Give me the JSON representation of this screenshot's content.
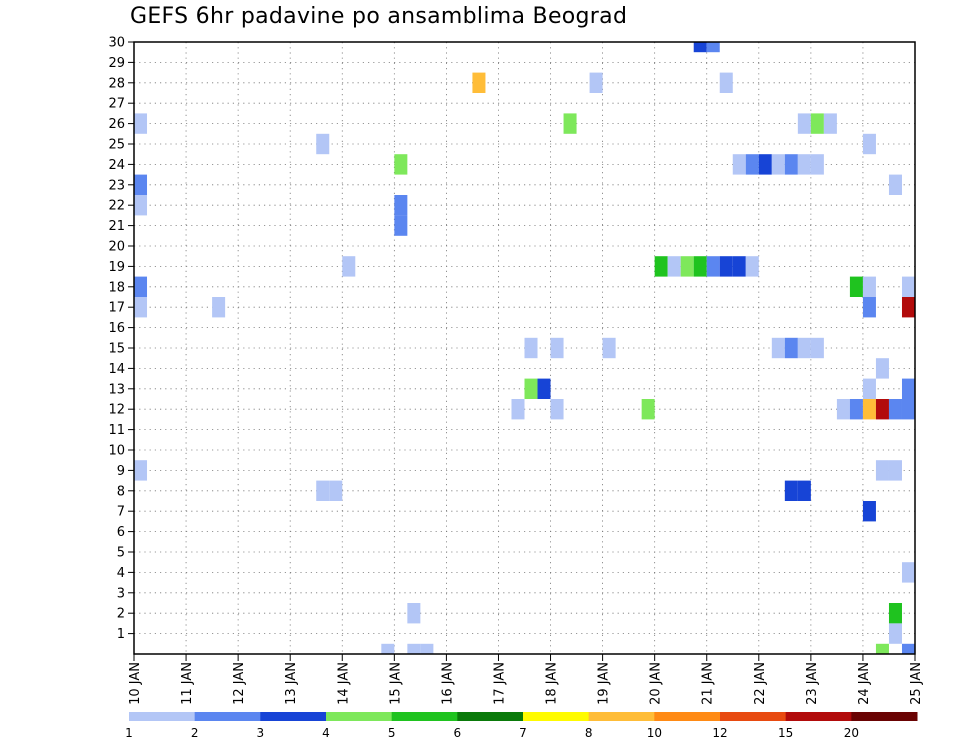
{
  "title": "GEFS 6hr padavine po ansamblima Beograd",
  "chart_data": {
    "type": "heatmap",
    "title": "GEFS 6hr padavine po ansamblima Beograd",
    "xlabel": "",
    "ylabel": "",
    "x_ticks": [
      "10 JAN",
      "11 JAN",
      "12 JAN",
      "13 JAN",
      "14 JAN",
      "15 JAN",
      "16 JAN",
      "17 JAN",
      "18 JAN",
      "19 JAN",
      "20 JAN",
      "21 JAN",
      "22 JAN",
      "23 JAN",
      "24 JAN",
      "25 JAN"
    ],
    "y_ticks": [
      1,
      2,
      3,
      4,
      5,
      6,
      7,
      8,
      9,
      10,
      11,
      12,
      13,
      14,
      15,
      16,
      17,
      18,
      19,
      20,
      21,
      22,
      23,
      24,
      25,
      26,
      27,
      28,
      29,
      30
    ],
    "xlim_days": [
      10,
      25
    ],
    "ylim_members": [
      0,
      30
    ],
    "time_step_hours": 6,
    "grid": "dotted",
    "colorbar": {
      "placement": "bottom",
      "labels": [
        "1",
        "2",
        "3",
        "4",
        "5",
        "6",
        "7",
        "8",
        "10",
        "12",
        "15",
        "20"
      ],
      "colors": [
        "#b3c6f6",
        "#5b86f0",
        "#1744d6",
        "#7ee85b",
        "#1fc31f",
        "#0a7a0a",
        "#fffb00",
        "#ffbd38",
        "#ff8a14",
        "#e84a10",
        "#b20b0b",
        "#6a0303"
      ]
    },
    "cells": [
      {
        "member": 30,
        "day": 20.875,
        "level": 3
      },
      {
        "member": 30,
        "day": 21.125,
        "level": 2
      },
      {
        "member": 28,
        "day": 16.625,
        "level": 8
      },
      {
        "member": 28,
        "day": 18.875,
        "level": 1
      },
      {
        "member": 28,
        "day": 21.375,
        "level": 1
      },
      {
        "member": 26,
        "day": 10.125,
        "level": 1
      },
      {
        "member": 26,
        "day": 18.375,
        "level": 4
      },
      {
        "member": 26,
        "day": 22.875,
        "level": 1
      },
      {
        "member": 26,
        "day": 23.125,
        "level": 4
      },
      {
        "member": 26,
        "day": 23.375,
        "level": 1
      },
      {
        "member": 25,
        "day": 13.625,
        "level": 1
      },
      {
        "member": 25,
        "day": 24.125,
        "level": 1
      },
      {
        "member": 24,
        "day": 15.125,
        "level": 4
      },
      {
        "member": 24,
        "day": 21.625,
        "level": 1
      },
      {
        "member": 24,
        "day": 21.875,
        "level": 2
      },
      {
        "member": 24,
        "day": 22.125,
        "level": 3
      },
      {
        "member": 24,
        "day": 22.375,
        "level": 1
      },
      {
        "member": 24,
        "day": 22.625,
        "level": 2
      },
      {
        "member": 24,
        "day": 22.875,
        "level": 1
      },
      {
        "member": 24,
        "day": 23.125,
        "level": 1
      },
      {
        "member": 23,
        "day": 10.125,
        "level": 2
      },
      {
        "member": 23,
        "day": 24.625,
        "level": 1
      },
      {
        "member": 22,
        "day": 10.125,
        "level": 1
      },
      {
        "member": 22,
        "day": 15.125,
        "level": 2
      },
      {
        "member": 21,
        "day": 15.125,
        "level": 2
      },
      {
        "member": 19,
        "day": 14.125,
        "level": 1
      },
      {
        "member": 19,
        "day": 20.125,
        "level": 5
      },
      {
        "member": 19,
        "day": 20.375,
        "level": 1
      },
      {
        "member": 19,
        "day": 20.625,
        "level": 4
      },
      {
        "member": 19,
        "day": 20.875,
        "level": 5
      },
      {
        "member": 19,
        "day": 21.125,
        "level": 2
      },
      {
        "member": 19,
        "day": 21.375,
        "level": 3
      },
      {
        "member": 19,
        "day": 21.625,
        "level": 3
      },
      {
        "member": 19,
        "day": 21.875,
        "level": 1
      },
      {
        "member": 18,
        "day": 10.125,
        "level": 2
      },
      {
        "member": 18,
        "day": 23.875,
        "level": 5
      },
      {
        "member": 18,
        "day": 24.125,
        "level": 1
      },
      {
        "member": 18,
        "day": 24.875,
        "level": 1
      },
      {
        "member": 17,
        "day": 10.125,
        "level": 1
      },
      {
        "member": 17,
        "day": 11.625,
        "level": 1
      },
      {
        "member": 17,
        "day": 24.125,
        "level": 2
      },
      {
        "member": 17,
        "day": 24.875,
        "level": 11
      },
      {
        "member": 15,
        "day": 17.625,
        "level": 1
      },
      {
        "member": 15,
        "day": 18.125,
        "level": 1
      },
      {
        "member": 15,
        "day": 19.125,
        "level": 1
      },
      {
        "member": 15,
        "day": 22.375,
        "level": 1
      },
      {
        "member": 15,
        "day": 22.625,
        "level": 2
      },
      {
        "member": 15,
        "day": 22.875,
        "level": 1
      },
      {
        "member": 15,
        "day": 23.125,
        "level": 1
      },
      {
        "member": 14,
        "day": 24.375,
        "level": 1
      },
      {
        "member": 13,
        "day": 17.625,
        "level": 4
      },
      {
        "member": 13,
        "day": 17.875,
        "level": 3
      },
      {
        "member": 13,
        "day": 24.125,
        "level": 1
      },
      {
        "member": 13,
        "day": 24.875,
        "level": 2
      },
      {
        "member": 12,
        "day": 17.375,
        "level": 1
      },
      {
        "member": 12,
        "day": 18.125,
        "level": 1
      },
      {
        "member": 12,
        "day": 19.875,
        "level": 4
      },
      {
        "member": 12,
        "day": 23.625,
        "level": 1
      },
      {
        "member": 12,
        "day": 23.875,
        "level": 2
      },
      {
        "member": 12,
        "day": 24.125,
        "level": 8
      },
      {
        "member": 12,
        "day": 24.375,
        "level": 11
      },
      {
        "member": 12,
        "day": 24.625,
        "level": 2
      },
      {
        "member": 12,
        "day": 24.875,
        "level": 2
      },
      {
        "member": 9,
        "day": 10.125,
        "level": 1
      },
      {
        "member": 9,
        "day": 24.375,
        "level": 1
      },
      {
        "member": 9,
        "day": 24.625,
        "level": 1
      },
      {
        "member": 8,
        "day": 13.625,
        "level": 1
      },
      {
        "member": 8,
        "day": 13.875,
        "level": 1
      },
      {
        "member": 8,
        "day": 22.625,
        "level": 3
      },
      {
        "member": 8,
        "day": 22.875,
        "level": 3
      },
      {
        "member": 7,
        "day": 24.125,
        "level": 3
      },
      {
        "member": 4,
        "day": 24.875,
        "level": 1
      },
      {
        "member": 2,
        "day": 15.375,
        "level": 1
      },
      {
        "member": 2,
        "day": 24.625,
        "level": 5
      },
      {
        "member": 1,
        "day": 24.625,
        "level": 1
      },
      {
        "member": 0,
        "day": 14.875,
        "level": 1
      },
      {
        "member": 0,
        "day": 15.375,
        "level": 1
      },
      {
        "member": 0,
        "day": 15.625,
        "level": 1
      },
      {
        "member": 0,
        "day": 24.375,
        "level": 4
      },
      {
        "member": 0,
        "day": 24.875,
        "level": 2
      }
    ]
  }
}
